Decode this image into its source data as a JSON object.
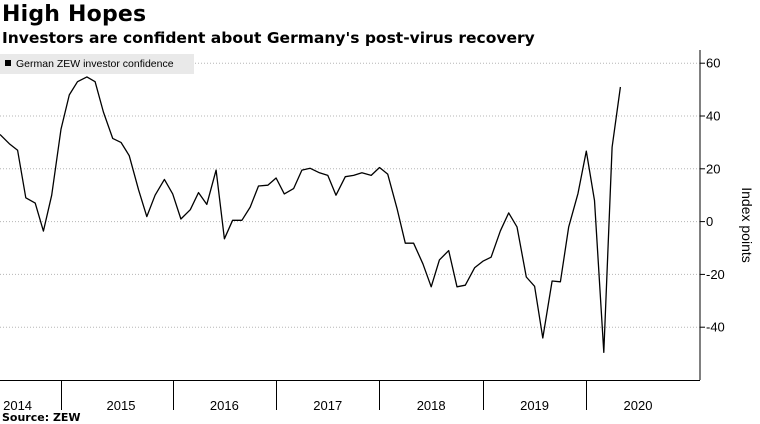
{
  "title": "High Hopes",
  "subtitle": "Investors are confident about Germany's post-virus recovery",
  "source": "Source: ZEW",
  "chart_data": {
    "type": "line",
    "legend": {
      "label": "German ZEW investor confidence",
      "placement": "top-left"
    },
    "ylabel": "Index points",
    "ylim": [
      -60,
      65
    ],
    "yticks": [
      -40,
      -20,
      0,
      20,
      40,
      60
    ],
    "ytick_labels": [
      "-40",
      "-20",
      "0",
      "20",
      "40",
      "60"
    ],
    "xlim": [
      2013.83,
      2020.6
    ],
    "year_labels": [
      {
        "label": "2014",
        "at": 2014.0
      },
      {
        "label": "2015",
        "at": 2015.0
      },
      {
        "label": "2016",
        "at": 2016.0
      },
      {
        "label": "2017",
        "at": 2017.0
      },
      {
        "label": "2018",
        "at": 2018.0
      },
      {
        "label": "2019",
        "at": 2019.0
      },
      {
        "label": "2020",
        "at": 2020.0
      }
    ],
    "year_dividers": [
      2014.42,
      2015.5,
      2016.5,
      2017.5,
      2018.5,
      2019.5
    ],
    "grid": true,
    "series": [
      {
        "name": "German ZEW investor confidence",
        "color": "#000000",
        "points": [
          [
            2013.83,
            33
          ],
          [
            2013.92,
            29.5
          ],
          [
            2014.0,
            27
          ],
          [
            2014.08,
            9
          ],
          [
            2014.17,
            7
          ],
          [
            2014.25,
            -3.6
          ],
          [
            2014.33,
            10
          ],
          [
            2014.42,
            35
          ],
          [
            2014.5,
            48
          ],
          [
            2014.58,
            53
          ],
          [
            2014.67,
            54.8
          ],
          [
            2014.75,
            53
          ],
          [
            2014.83,
            41.5
          ],
          [
            2014.92,
            31.5
          ],
          [
            2015.0,
            30
          ],
          [
            2015.08,
            25
          ],
          [
            2015.17,
            12
          ],
          [
            2015.25,
            1.9
          ],
          [
            2015.33,
            10
          ],
          [
            2015.42,
            16
          ],
          [
            2015.5,
            10.5
          ],
          [
            2015.58,
            1
          ],
          [
            2015.67,
            4.5
          ],
          [
            2015.75,
            11
          ],
          [
            2015.83,
            6.5
          ],
          [
            2015.92,
            19.5
          ],
          [
            2016.0,
            -6.5
          ],
          [
            2016.08,
            0.5
          ],
          [
            2016.17,
            0.5
          ],
          [
            2016.25,
            5.5
          ],
          [
            2016.33,
            13.5
          ],
          [
            2016.42,
            13.8
          ],
          [
            2016.5,
            16.5
          ],
          [
            2016.58,
            10.5
          ],
          [
            2016.67,
            12.5
          ],
          [
            2016.75,
            19.5
          ],
          [
            2016.83,
            20.2
          ],
          [
            2016.92,
            18.5
          ],
          [
            2017.0,
            17.5
          ],
          [
            2017.08,
            10
          ],
          [
            2017.17,
            17
          ],
          [
            2017.25,
            17.5
          ],
          [
            2017.33,
            18.5
          ],
          [
            2017.42,
            17.5
          ],
          [
            2017.5,
            20.5
          ],
          [
            2017.58,
            18
          ],
          [
            2017.67,
            5
          ],
          [
            2017.75,
            -8.2
          ],
          [
            2017.83,
            -8.2
          ],
          [
            2017.92,
            -16
          ],
          [
            2018.0,
            -24.7
          ],
          [
            2018.08,
            -14.5
          ],
          [
            2018.17,
            -11
          ],
          [
            2018.25,
            -24.7
          ],
          [
            2018.33,
            -24.1
          ],
          [
            2018.42,
            -17.5
          ],
          [
            2018.5,
            -15
          ],
          [
            2018.58,
            -13.5
          ],
          [
            2018.67,
            -3.5
          ],
          [
            2018.75,
            3.3
          ],
          [
            2018.83,
            -2
          ],
          [
            2018.92,
            -21
          ],
          [
            2019.0,
            -24.5
          ],
          [
            2019.08,
            -44.1
          ],
          [
            2019.17,
            -22.5
          ],
          [
            2019.25,
            -22.8
          ],
          [
            2019.33,
            -2
          ],
          [
            2019.42,
            10.7
          ],
          [
            2019.5,
            26.7
          ],
          [
            2019.58,
            8
          ],
          [
            2019.67,
            -49.5
          ],
          [
            2019.75,
            28.2
          ],
          [
            2019.83,
            51
          ]
        ]
      }
    ]
  }
}
